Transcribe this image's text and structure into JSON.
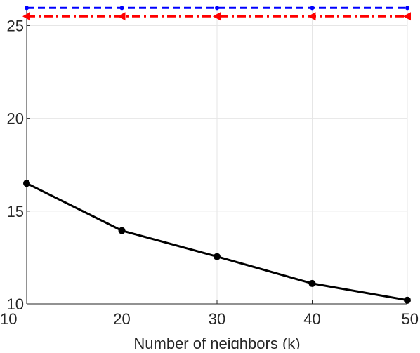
{
  "chart_data": {
    "type": "line",
    "xlabel": "Number of neighbors (k)",
    "ylabel": "",
    "xlim": [
      10,
      50
    ],
    "ylim": [
      10,
      26
    ],
    "grid": true,
    "x_ticks": [
      10,
      20,
      30,
      40,
      50
    ],
    "y_ticks": [
      10,
      15,
      20,
      25
    ],
    "x": [
      10,
      20,
      30,
      40,
      50
    ],
    "series": [
      {
        "values": [
          25.95,
          25.95,
          25.95,
          25.95,
          25.95
        ],
        "color": "#0000ff",
        "line_style": "dashed",
        "marker": "point"
      },
      {
        "values": [
          25.5,
          25.5,
          25.5,
          25.5,
          25.5
        ],
        "color": "#ff0000",
        "line_style": "dash-dot",
        "marker": "left-triangle"
      },
      {
        "values": [
          16.5,
          13.95,
          12.55,
          11.1,
          10.2
        ],
        "color": "#000000",
        "line_style": "solid",
        "marker": "filled-circle"
      }
    ]
  }
}
